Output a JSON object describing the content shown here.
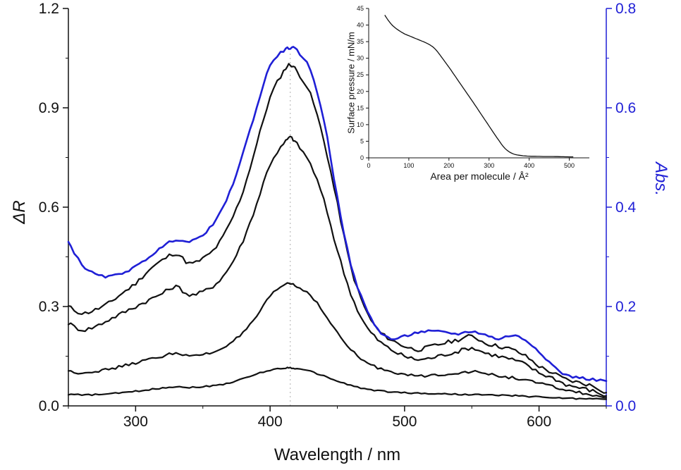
{
  "figure": {
    "colors": {
      "black": "#111111",
      "blue": "#1f1fd6",
      "dotted": "#b0b0b0"
    }
  },
  "chart_data": [
    {
      "id": "main-spectra",
      "type": "line",
      "title": "",
      "xlabel": "Wavelength / nm",
      "ylabel_left": "ΔR",
      "ylabel_right": "Abs.",
      "xlim": [
        250,
        650
      ],
      "ylim_left": [
        0.0,
        1.2
      ],
      "ylim_right": [
        0.0,
        0.8
      ],
      "x_ticks": [
        300,
        400,
        500,
        600
      ],
      "x_minor_ticks": [
        250,
        350,
        450,
        550,
        650
      ],
      "y_ticks_left": [
        0.0,
        0.3,
        0.6,
        0.9,
        1.2
      ],
      "y_minor_ticks_left": [
        0.15,
        0.45,
        0.75,
        1.05
      ],
      "y_ticks_right": [
        0.0,
        0.2,
        0.4,
        0.6,
        0.8
      ],
      "y_minor_ticks_right": [
        0.1,
        0.3,
        0.5,
        0.7
      ],
      "grid": false,
      "legend": false,
      "reference_line_x": 415,
      "x": [
        250,
        260,
        270,
        280,
        290,
        300,
        310,
        320,
        330,
        340,
        350,
        360,
        370,
        380,
        390,
        400,
        410,
        415,
        420,
        430,
        440,
        450,
        460,
        470,
        480,
        490,
        500,
        510,
        520,
        530,
        540,
        550,
        560,
        570,
        580,
        590,
        600,
        610,
        620,
        630,
        640,
        650
      ],
      "series": [
        {
          "name": "reflection-spectrum-1",
          "axis": "left",
          "color": "black",
          "width": 2.2,
          "noise": 0.006,
          "values": [
            0.3,
            0.28,
            0.29,
            0.31,
            0.34,
            0.37,
            0.41,
            0.44,
            0.46,
            0.43,
            0.445,
            0.48,
            0.55,
            0.65,
            0.79,
            0.93,
            1.01,
            1.03,
            1.01,
            0.94,
            0.8,
            0.61,
            0.42,
            0.3,
            0.23,
            0.2,
            0.18,
            0.17,
            0.18,
            0.19,
            0.2,
            0.21,
            0.19,
            0.18,
            0.17,
            0.15,
            0.12,
            0.1,
            0.08,
            0.07,
            0.06,
            0.04
          ]
        },
        {
          "name": "reflection-spectrum-2",
          "axis": "left",
          "color": "black",
          "width": 2.2,
          "noise": 0.006,
          "values": [
            0.25,
            0.23,
            0.24,
            0.26,
            0.28,
            0.3,
            0.32,
            0.34,
            0.36,
            0.335,
            0.345,
            0.37,
            0.42,
            0.5,
            0.61,
            0.73,
            0.79,
            0.81,
            0.79,
            0.73,
            0.62,
            0.47,
            0.34,
            0.25,
            0.2,
            0.17,
            0.15,
            0.14,
            0.145,
            0.155,
            0.165,
            0.175,
            0.16,
            0.15,
            0.14,
            0.125,
            0.1,
            0.085,
            0.065,
            0.055,
            0.045,
            0.03
          ]
        },
        {
          "name": "reflection-spectrum-3",
          "axis": "left",
          "color": "black",
          "width": 2.2,
          "noise": 0.004,
          "values": [
            0.105,
            0.1,
            0.105,
            0.11,
            0.12,
            0.13,
            0.14,
            0.15,
            0.16,
            0.15,
            0.155,
            0.165,
            0.19,
            0.22,
            0.27,
            0.33,
            0.365,
            0.37,
            0.36,
            0.335,
            0.28,
            0.22,
            0.17,
            0.135,
            0.115,
            0.105,
            0.095,
            0.09,
            0.092,
            0.096,
            0.1,
            0.103,
            0.098,
            0.09,
            0.085,
            0.078,
            0.068,
            0.058,
            0.048,
            0.04,
            0.032,
            0.025
          ]
        },
        {
          "name": "reflection-spectrum-4",
          "axis": "left",
          "color": "black",
          "width": 2.2,
          "noise": 0.002,
          "values": [
            0.035,
            0.033,
            0.034,
            0.036,
            0.04,
            0.044,
            0.049,
            0.054,
            0.058,
            0.056,
            0.058,
            0.062,
            0.07,
            0.082,
            0.096,
            0.108,
            0.114,
            0.115,
            0.112,
            0.104,
            0.09,
            0.075,
            0.062,
            0.052,
            0.046,
            0.042,
            0.04,
            0.038,
            0.037,
            0.036,
            0.035,
            0.034,
            0.033,
            0.032,
            0.031,
            0.029,
            0.027,
            0.025,
            0.023,
            0.022,
            0.021,
            0.02
          ]
        },
        {
          "name": "absorbance-spectrum",
          "axis": "right",
          "color": "blue",
          "width": 2.6,
          "noise": 0.0025,
          "values": [
            0.33,
            0.285,
            0.265,
            0.26,
            0.268,
            0.28,
            0.3,
            0.32,
            0.335,
            0.33,
            0.345,
            0.375,
            0.43,
            0.51,
            0.6,
            0.685,
            0.715,
            0.72,
            0.715,
            0.675,
            0.575,
            0.42,
            0.285,
            0.205,
            0.155,
            0.135,
            0.14,
            0.148,
            0.15,
            0.148,
            0.145,
            0.15,
            0.143,
            0.135,
            0.142,
            0.132,
            0.11,
            0.082,
            0.062,
            0.057,
            0.053,
            0.05
          ]
        }
      ]
    },
    {
      "id": "inset-isotherm",
      "type": "line",
      "title": "",
      "xlabel": "Area per molecule / Å²",
      "ylabel": "Surface pressure / mN/m",
      "xlim": [
        0,
        550
      ],
      "ylim": [
        0,
        45
      ],
      "x_ticks": [
        0,
        100,
        200,
        300,
        400,
        500
      ],
      "y_ticks": [
        0,
        5,
        10,
        15,
        20,
        25,
        30,
        35,
        40,
        45
      ],
      "grid": false,
      "legend": false,
      "series": [
        {
          "name": "pressure-area-isotherm",
          "color": "black",
          "width": 1.3,
          "noise": 0,
          "x": [
            40,
            50,
            60,
            70,
            80,
            90,
            100,
            110,
            120,
            130,
            140,
            150,
            160,
            170,
            180,
            200,
            220,
            240,
            260,
            280,
            300,
            320,
            340,
            360,
            380,
            400,
            420,
            440,
            460,
            480,
            500,
            510
          ],
          "values": [
            43,
            41.2,
            39.8,
            38.8,
            38,
            37.3,
            36.8,
            36.3,
            35.8,
            35.3,
            34.8,
            34.2,
            33.4,
            32.2,
            30.6,
            27.3,
            23.8,
            20.3,
            16.8,
            13.2,
            9.6,
            6.0,
            2.8,
            1.2,
            0.7,
            0.5,
            0.45,
            0.4,
            0.4,
            0.35,
            0.3,
            0.3
          ]
        }
      ]
    }
  ]
}
